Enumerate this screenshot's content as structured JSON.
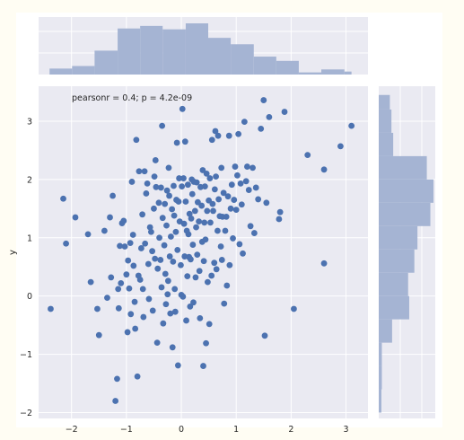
{
  "chart_data": {
    "type": "scatter",
    "title": "",
    "xlabel": "",
    "ylabel": "y",
    "annotation": "pearsonr = 0.4; p = 4.2e-09",
    "xlim": [
      -2.6,
      3.4
    ],
    "ylim": [
      -2.1,
      3.6
    ],
    "xticks": [
      -2,
      -1,
      0,
      1,
      2,
      3
    ],
    "yticks": [
      -2,
      -1,
      0,
      1,
      2,
      3
    ],
    "grid": true,
    "colors": {
      "page_background": "#fffdf3",
      "panel_background": "#eaeaf2",
      "grid": "#ffffff",
      "points": "#4c72b0",
      "hist": "#a5b4d3"
    },
    "points": [
      [
        -2.38,
        -0.22
      ],
      [
        -2.1,
        0.9
      ],
      [
        -2.15,
        1.67
      ],
      [
        -1.93,
        1.35
      ],
      [
        -1.7,
        1.06
      ],
      [
        -1.65,
        0.24
      ],
      [
        -1.53,
        -0.22
      ],
      [
        -1.5,
        -0.67
      ],
      [
        -1.4,
        1.12
      ],
      [
        -1.35,
        -0.03
      ],
      [
        -1.3,
        1.35
      ],
      [
        -1.28,
        0.32
      ],
      [
        -1.25,
        1.72
      ],
      [
        -1.2,
        -1.8
      ],
      [
        -1.17,
        -1.42
      ],
      [
        -1.15,
        0.12
      ],
      [
        -1.14,
        -0.21
      ],
      [
        -1.12,
        0.86
      ],
      [
        -1.1,
        0.22
      ],
      [
        -1.08,
        1.25
      ],
      [
        -1.05,
        1.29
      ],
      [
        -1.03,
        0.85
      ],
      [
        -1.0,
        0.37
      ],
      [
        -0.98,
        -0.62
      ],
      [
        -0.97,
        0.61
      ],
      [
        -0.95,
        0.13
      ],
      [
        -0.93,
        0.91
      ],
      [
        -0.92,
        -0.31
      ],
      [
        -0.9,
        1.96
      ],
      [
        -0.88,
        1.05
      ],
      [
        -0.87,
        0.52
      ],
      [
        -0.85,
        -0.1
      ],
      [
        -0.84,
        -0.56
      ],
      [
        -0.82,
        2.68
      ],
      [
        -0.8,
        -1.38
      ],
      [
        -0.78,
        0.35
      ],
      [
        -0.77,
        2.14
      ],
      [
        -0.75,
        0.28
      ],
      [
        -0.73,
        0.82
      ],
      [
        -0.71,
        1.4
      ],
      [
        -0.7,
        0.12
      ],
      [
        -0.69,
        -0.36
      ],
      [
        -0.67,
        2.14
      ],
      [
        -0.66,
        0.9
      ],
      [
        -0.64,
        1.76
      ],
      [
        -0.62,
        1.93
      ],
      [
        -0.6,
        0.55
      ],
      [
        -0.59,
        -0.05
      ],
      [
        -0.57,
        1.18
      ],
      [
        -0.55,
        1.1
      ],
      [
        -0.53,
        0.77
      ],
      [
        -0.52,
        -0.25
      ],
      [
        -0.5,
        1.5
      ],
      [
        -0.49,
        2.05
      ],
      [
        -0.48,
        0.64
      ],
      [
        -0.47,
        2.33
      ],
      [
        -0.46,
        1.87
      ],
      [
        -0.44,
        -0.8
      ],
      [
        -0.43,
        0.47
      ],
      [
        -0.41,
        1.6
      ],
      [
        -0.4,
        1.0
      ],
      [
        -0.38,
        0.62
      ],
      [
        -0.37,
        1.86
      ],
      [
        -0.36,
        0.15
      ],
      [
        -0.35,
        2.92
      ],
      [
        -0.34,
        1.34
      ],
      [
        -0.33,
        -0.47
      ],
      [
        -0.31,
        0.87
      ],
      [
        -0.3,
        1.58
      ],
      [
        -0.29,
        0.38
      ],
      [
        -0.28,
        -0.14
      ],
      [
        -0.27,
        1.21
      ],
      [
        -0.26,
        1.81
      ],
      [
        -0.25,
        0.03
      ],
      [
        -0.24,
        0.26
      ],
      [
        -0.23,
        2.2
      ],
      [
        -0.22,
        1.72
      ],
      [
        -0.21,
        0.68
      ],
      [
        -0.2,
        -0.3
      ],
      [
        -0.19,
        1.02
      ],
      [
        -0.17,
        1.49
      ],
      [
        -0.16,
        -0.88
      ],
      [
        -0.15,
        0.59
      ],
      [
        -0.14,
        1.89
      ],
      [
        -0.13,
        1.38
      ],
      [
        -0.12,
        0.12
      ],
      [
        -0.11,
        -0.27
      ],
      [
        -0.1,
        1.1
      ],
      [
        -0.09,
        1.65
      ],
      [
        -0.08,
        2.63
      ],
      [
        -0.07,
        0.79
      ],
      [
        -0.06,
        -1.19
      ],
      [
        -0.05,
        1.62
      ],
      [
        -0.04,
        2.02
      ],
      [
        -0.03,
        1.28
      ],
      [
        -0.01,
        0.53
      ],
      [
        0.0,
        0.02
      ],
      [
        0.01,
        1.88
      ],
      [
        0.02,
        3.21
      ],
      [
        0.03,
        -0.01
      ],
      [
        0.04,
        2.02
      ],
      [
        0.05,
        1.24
      ],
      [
        0.06,
        0.68
      ],
      [
        0.07,
        2.65
      ],
      [
        0.08,
        1.62
      ],
      [
        0.09,
        -0.42
      ],
      [
        0.1,
        1.12
      ],
      [
        0.11,
        0.34
      ],
      [
        0.12,
        1.91
      ],
      [
        0.13,
        1.06
      ],
      [
        0.14,
        0.67
      ],
      [
        0.15,
        1.41
      ],
      [
        0.16,
        -0.18
      ],
      [
        0.17,
        0.63
      ],
      [
        0.18,
        1.33
      ],
      [
        0.19,
        2.0
      ],
      [
        0.2,
        1.75
      ],
      [
        0.21,
        0.88
      ],
      [
        0.22,
        -0.11
      ],
      [
        0.23,
        1.96
      ],
      [
        0.25,
        1.46
      ],
      [
        0.26,
        0.32
      ],
      [
        0.27,
        1.18
      ],
      [
        0.28,
        1.95
      ],
      [
        0.29,
        0.71
      ],
      [
        0.3,
        1.61
      ],
      [
        0.32,
        1.28
      ],
      [
        0.33,
        0.43
      ],
      [
        0.34,
        -0.38
      ],
      [
        0.35,
        1.87
      ],
      [
        0.37,
        1.55
      ],
      [
        0.38,
        0.93
      ],
      [
        0.39,
        2.16
      ],
      [
        0.4,
        -1.2
      ],
      [
        0.41,
        0.6
      ],
      [
        0.42,
        1.26
      ],
      [
        0.43,
        1.88
      ],
      [
        0.44,
        0.97
      ],
      [
        0.45,
        -0.81
      ],
      [
        0.46,
        2.1
      ],
      [
        0.47,
        1.46
      ],
      [
        0.48,
        0.24
      ],
      [
        0.5,
        1.64
      ],
      [
        0.51,
        -0.48
      ],
      [
        0.52,
        2.02
      ],
      [
        0.53,
        1.26
      ],
      [
        0.55,
        0.35
      ],
      [
        0.56,
        2.68
      ],
      [
        0.57,
        1.58
      ],
      [
        0.58,
        1.46
      ],
      [
        0.6,
        0.57
      ],
      [
        0.61,
        1.83
      ],
      [
        0.62,
        2.83
      ],
      [
        0.63,
        2.05
      ],
      [
        0.64,
        0.46
      ],
      [
        0.66,
        1.12
      ],
      [
        0.67,
        2.75
      ],
      [
        0.68,
        1.66
      ],
      [
        0.7,
        1.37
      ],
      [
        0.72,
        0.85
      ],
      [
        0.73,
        2.2
      ],
      [
        0.74,
        0.62
      ],
      [
        0.75,
        1.36
      ],
      [
        0.77,
        1.77
      ],
      [
        0.78,
        -0.13
      ],
      [
        0.8,
        1.12
      ],
      [
        0.82,
        1.36
      ],
      [
        0.83,
        0.18
      ],
      [
        0.85,
        1.71
      ],
      [
        0.87,
        2.75
      ],
      [
        0.88,
        0.53
      ],
      [
        0.9,
        1.5
      ],
      [
        0.92,
        1.91
      ],
      [
        0.94,
        0.99
      ],
      [
        0.96,
        1.65
      ],
      [
        0.98,
        2.22
      ],
      [
        1.0,
        1.48
      ],
      [
        1.02,
        2.07
      ],
      [
        1.04,
        2.78
      ],
      [
        1.06,
        0.89
      ],
      [
        1.08,
        1.93
      ],
      [
        1.1,
        1.57
      ],
      [
        1.12,
        0.73
      ],
      [
        1.15,
        2.99
      ],
      [
        1.18,
        1.97
      ],
      [
        1.2,
        2.22
      ],
      [
        1.23,
        1.82
      ],
      [
        1.26,
        1.2
      ],
      [
        1.3,
        2.2
      ],
      [
        1.33,
        1.08
      ],
      [
        1.36,
        1.86
      ],
      [
        1.4,
        1.66
      ],
      [
        1.45,
        2.87
      ],
      [
        1.5,
        3.36
      ],
      [
        1.52,
        -0.68
      ],
      [
        1.55,
        1.6
      ],
      [
        1.6,
        3.07
      ],
      [
        1.78,
        1.32
      ],
      [
        1.8,
        1.44
      ],
      [
        1.88,
        3.16
      ],
      [
        2.05,
        -0.22
      ],
      [
        2.3,
        2.42
      ],
      [
        2.6,
        0.56
      ],
      [
        2.6,
        2.17
      ],
      [
        2.9,
        2.57
      ],
      [
        3.1,
        2.92
      ]
    ],
    "x_hist": {
      "bin_edges": [
        -2.4,
        -1.99,
        -1.58,
        -1.16,
        -0.75,
        -0.34,
        0.08,
        0.49,
        0.9,
        1.32,
        1.73,
        2.14,
        2.55,
        2.97,
        3.1
      ],
      "counts": [
        0.14,
        0.2,
        0.56,
        1.08,
        1.14,
        1.06,
        1.2,
        0.86,
        0.71,
        0.42,
        0.32,
        0.05,
        0.12,
        0.07
      ]
    },
    "y_hist": {
      "bin_edges": [
        -2.0,
        -1.6,
        -1.2,
        -0.8,
        -0.4,
        0.0,
        0.4,
        0.8,
        1.2,
        1.6,
        2.0,
        2.4,
        2.8,
        3.2,
        3.45
      ],
      "counts": [
        0.12,
        0.14,
        0.14,
        0.6,
        1.37,
        1.32,
        1.6,
        1.74,
        2.32,
        2.46,
        2.16,
        0.65,
        0.57,
        0.5
      ]
    }
  }
}
